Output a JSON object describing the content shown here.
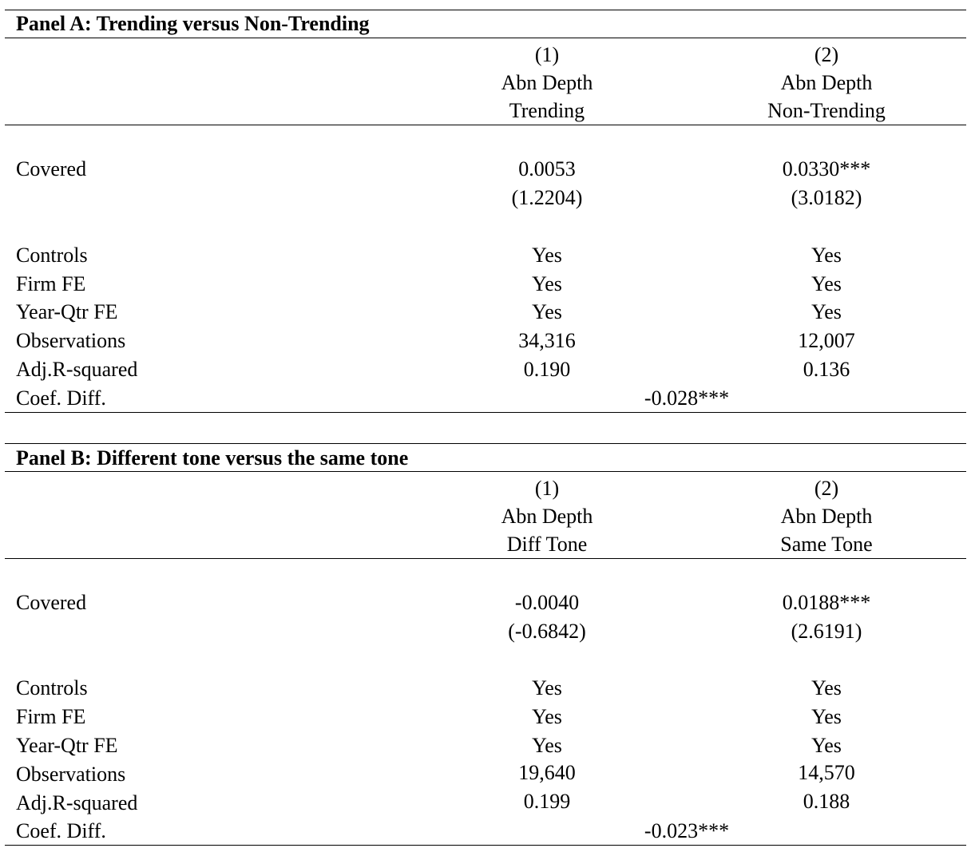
{
  "panels": [
    {
      "title": "Panel A: Trending versus Non-Trending",
      "columns": [
        {
          "num": "(1)",
          "dep": "Abn Depth",
          "sub": "Trending"
        },
        {
          "num": "(2)",
          "dep": "Abn Depth",
          "sub": "Non-Trending"
        }
      ],
      "covered": {
        "label": "Covered",
        "coef": [
          "0.0053",
          "0.0330***"
        ],
        "tstat": [
          "(1.2204)",
          "(3.0182)"
        ]
      },
      "rows": [
        {
          "label": "Controls",
          "values": [
            "Yes",
            "Yes"
          ]
        },
        {
          "label": "Firm FE",
          "values": [
            "Yes",
            "Yes"
          ]
        },
        {
          "label": "Year-Qtr FE",
          "values": [
            "Yes",
            "Yes"
          ]
        },
        {
          "label": "Observations",
          "values": [
            "34,316",
            "12,007"
          ]
        },
        {
          "label": "Adj.R-squared",
          "values": [
            "0.190",
            "0.136"
          ]
        }
      ],
      "coef_diff": {
        "label": "Coef. Diff.",
        "value": "-0.028***"
      }
    },
    {
      "title": "Panel B: Different tone versus the same tone",
      "columns": [
        {
          "num": "(1)",
          "dep": "Abn Depth",
          "sub": "Diff Tone"
        },
        {
          "num": "(2)",
          "dep": "Abn Depth",
          "sub": "Same Tone"
        }
      ],
      "covered": {
        "label": "Covered",
        "coef": [
          "-0.0040",
          "0.0188***"
        ],
        "tstat": [
          "(-0.6842)",
          "(2.6191)"
        ]
      },
      "rows": [
        {
          "label": "Controls",
          "values": [
            "Yes",
            "Yes"
          ]
        },
        {
          "label": "Firm FE",
          "values": [
            "Yes",
            "Yes"
          ]
        },
        {
          "label": "Year-Qtr FE",
          "values": [
            "Yes",
            "Yes"
          ]
        },
        {
          "label": "Observations",
          "values": [
            "19,640",
            "14,570"
          ]
        },
        {
          "label": "Adj.R-squared",
          "values": [
            "0.199",
            "0.188"
          ]
        }
      ],
      "coef_diff": {
        "label": "Coef. Diff.",
        "value": "-0.023***"
      }
    }
  ]
}
